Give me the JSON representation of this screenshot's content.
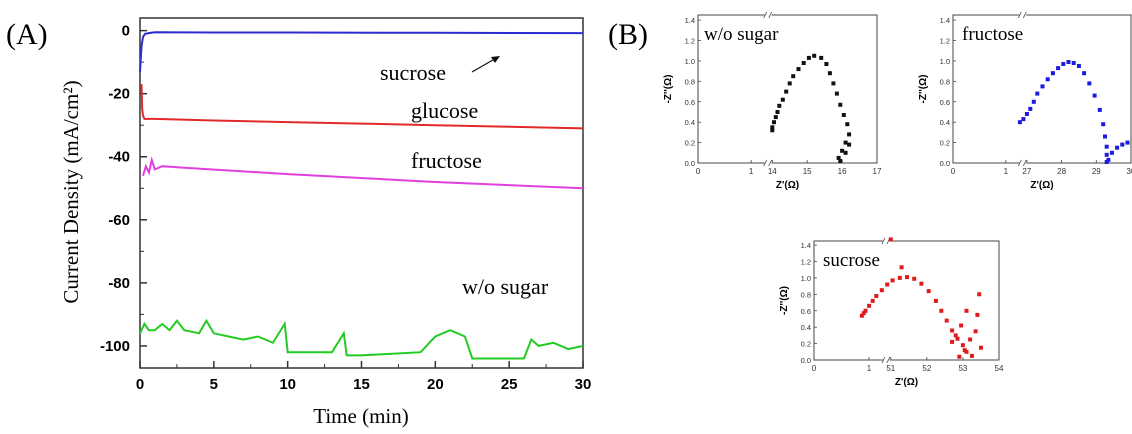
{
  "panel_a": {
    "panel_label": "(A)",
    "chart_data": {
      "type": "line",
      "xlabel": "Time (min)",
      "ylabel": "Current Density (mA/cm²)",
      "xlim": [
        0,
        30
      ],
      "ylim": [
        -107,
        4
      ],
      "x_ticks": [
        "0",
        "5",
        "10",
        "15",
        "20",
        "25",
        "30"
      ],
      "y_ticks": [
        "0",
        "-20",
        "-40",
        "-60",
        "-80",
        "-100"
      ],
      "grid": false,
      "series": [
        {
          "name": "sucrose",
          "color": "#2b2bd0",
          "x": [
            0,
            0.1,
            0.2,
            0.35,
            0.6,
            1,
            5,
            10,
            20,
            30
          ],
          "y": [
            -13,
            -5,
            -2,
            -1,
            -0.8,
            -0.5,
            -0.6,
            -0.6,
            -0.7,
            -0.8
          ]
        },
        {
          "name": "glucose",
          "color": "#e02a2a",
          "x": [
            0.1,
            0.15,
            0.2,
            0.3,
            0.5,
            1,
            5,
            10,
            15,
            20,
            25,
            30
          ],
          "y": [
            -17,
            -25,
            -27,
            -28,
            -28,
            -28,
            -28.5,
            -29,
            -29.5,
            -30,
            -30.5,
            -31
          ]
        },
        {
          "name": "fructose",
          "color": "#e040e0",
          "x": [
            0.2,
            0.4,
            0.6,
            0.8,
            1,
            1.5,
            3,
            10,
            20,
            30
          ],
          "y": [
            -46,
            -43,
            -45,
            -41,
            -44,
            -43,
            -43.5,
            -45.5,
            -48,
            -50
          ]
        },
        {
          "name": "w/o sugar",
          "color": "#22cc22",
          "x": [
            0,
            0.3,
            0.6,
            1,
            1.5,
            2,
            2.5,
            3,
            4,
            4.5,
            5,
            6,
            7,
            8,
            9,
            9.8,
            10,
            13,
            13.8,
            14,
            15,
            19,
            20,
            21,
            22,
            22.5,
            23,
            26,
            26.5,
            27,
            28,
            29,
            30
          ],
          "y": [
            -96,
            -93,
            -95,
            -95,
            -93,
            -95,
            -92,
            -95,
            -96,
            -92,
            -96,
            -97,
            -98,
            -97,
            -99,
            -93,
            -102,
            -102,
            -96,
            -103,
            -103,
            -102,
            -97,
            -95,
            -97,
            -104,
            -104,
            -104,
            -98,
            -100,
            -99,
            -101,
            -100
          ]
        }
      ],
      "annotations": [
        {
          "text": "sucrose",
          "series": "sucrose"
        },
        {
          "text": "glucose",
          "series": "glucose"
        },
        {
          "text": "fructose",
          "series": "fructose"
        },
        {
          "text": "w/o sugar",
          "series": "w/o sugar"
        }
      ]
    }
  },
  "panel_b": {
    "panel_label": "(B)",
    "insets": [
      {
        "chart_data": {
          "type": "scatter",
          "title": "w/o sugar",
          "color": "#111111",
          "xlabel": "Z'(Ω)",
          "ylabel": "-Z''(Ω)",
          "xlim": [
            0,
            17
          ],
          "ylim": [
            0,
            1.45
          ],
          "x_ticks": [
            {
              "v": 0,
              "t": "0"
            },
            {
              "v": 1,
              "t": "1"
            },
            {
              "v": 14,
              "t": "14"
            },
            {
              "v": 15,
              "t": "15"
            },
            {
              "v": 16,
              "t": "16"
            },
            {
              "v": 17,
              "t": "17"
            }
          ],
          "y_ticks": [
            "0.0",
            "0.2",
            "0.4",
            "0.6",
            "0.8",
            "1.0",
            "1.2",
            "1.4"
          ],
          "x": [
            14.0,
            14.0,
            14.05,
            14.1,
            14.15,
            14.2,
            14.3,
            14.4,
            14.5,
            14.6,
            14.75,
            14.9,
            15.05,
            15.2,
            15.4,
            15.55,
            15.65,
            15.75,
            15.85,
            15.95,
            16.05,
            16.15,
            16.2,
            16.1,
            16.0,
            15.9,
            15.95,
            16.1,
            16.2
          ],
          "y": [
            0.32,
            0.35,
            0.4,
            0.45,
            0.5,
            0.56,
            0.62,
            0.7,
            0.78,
            0.85,
            0.92,
            0.98,
            1.03,
            1.05,
            1.03,
            0.97,
            0.88,
            0.78,
            0.68,
            0.57,
            0.47,
            0.38,
            0.28,
            0.2,
            0.12,
            0.05,
            0.02,
            0.1,
            0.18
          ]
        }
      },
      {
        "chart_data": {
          "type": "scatter",
          "title": "fructose",
          "color": "#1a1ae0",
          "xlabel": "Z'(Ω)",
          "ylabel": "-Z''(Ω)",
          "xlim": [
            0,
            30
          ],
          "ylim": [
            0,
            1.45
          ],
          "x_ticks": [
            {
              "v": 0,
              "t": "0"
            },
            {
              "v": 1,
              "t": "1"
            },
            {
              "v": 27,
              "t": "27"
            },
            {
              "v": 28,
              "t": "28"
            },
            {
              "v": 29,
              "t": "29"
            },
            {
              "v": 30,
              "t": "30"
            }
          ],
          "y_ticks": [
            "0.0",
            "0.2",
            "0.4",
            "0.6",
            "0.8",
            "1.0",
            "1.2",
            "1.4"
          ],
          "x": [
            26.8,
            26.9,
            27.0,
            27.1,
            27.2,
            27.3,
            27.45,
            27.6,
            27.75,
            27.9,
            28.05,
            28.2,
            28.35,
            28.5,
            28.65,
            28.8,
            28.95,
            29.1,
            29.2,
            29.25,
            29.3,
            29.3,
            29.35,
            29.3,
            29.45,
            29.6,
            29.75,
            29.9
          ],
          "y": [
            0.4,
            0.43,
            0.48,
            0.53,
            0.6,
            0.68,
            0.75,
            0.82,
            0.88,
            0.93,
            0.97,
            0.99,
            0.98,
            0.95,
            0.88,
            0.78,
            0.66,
            0.52,
            0.38,
            0.26,
            0.16,
            0.08,
            0.03,
            0.01,
            0.1,
            0.15,
            0.18,
            0.2
          ]
        }
      },
      {
        "chart_data": {
          "type": "scatter",
          "title": "sucrose",
          "color": "#e01a1a",
          "xlabel": "Z'(Ω)",
          "ylabel": "-Z''(Ω)",
          "xlim": [
            0,
            54
          ],
          "ylim": [
            0,
            1.45
          ],
          "x_ticks": [
            {
              "v": 0,
              "t": "0"
            },
            {
              "v": 1,
              "t": "1"
            },
            {
              "v": 51,
              "t": "51"
            },
            {
              "v": 52,
              "t": "52"
            },
            {
              "v": 53,
              "t": "53"
            },
            {
              "v": 54,
              "t": "54"
            }
          ],
          "y_ticks": [
            "0.0",
            "0.2",
            "0.4",
            "0.6",
            "0.8",
            "1.0",
            "1.2",
            "1.4"
          ],
          "x": [
            50.2,
            50.25,
            50.3,
            50.4,
            50.5,
            50.6,
            50.75,
            50.9,
            51.05,
            51.25,
            51.45,
            51.65,
            51.85,
            52.05,
            52.25,
            52.4,
            52.55,
            52.7,
            52.85,
            53.0,
            53.1,
            52.9,
            53.2,
            53.35,
            53.45,
            53.5,
            52.95,
            53.25,
            52.8,
            51.0,
            51.3,
            53.1,
            52.7,
            53.4,
            53.05
          ],
          "y": [
            0.54,
            0.57,
            0.6,
            0.66,
            0.72,
            0.78,
            0.85,
            0.92,
            0.97,
            1.0,
            1.01,
            0.99,
            0.93,
            0.84,
            0.72,
            0.6,
            0.48,
            0.36,
            0.26,
            0.18,
            0.1,
            0.04,
            0.25,
            0.35,
            0.8,
            0.15,
            0.42,
            0.05,
            0.3,
            1.47,
            1.13,
            0.6,
            0.22,
            0.55,
            0.12
          ]
        }
      }
    ]
  }
}
